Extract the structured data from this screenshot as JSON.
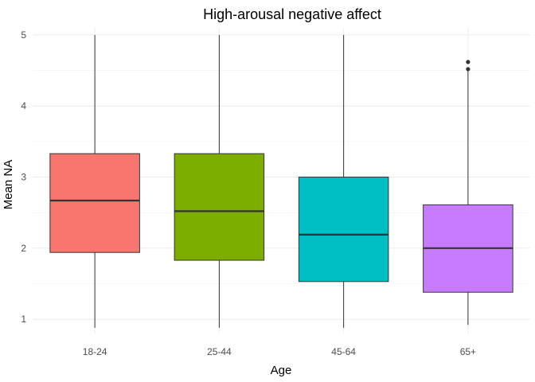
{
  "chart_data": {
    "type": "boxplot",
    "title": "High-arousal negative affect",
    "xlabel": "Age",
    "ylabel": "Mean NA",
    "categories": [
      "18-24",
      "25-44",
      "45-64",
      "65+"
    ],
    "colors": [
      "#F8766D",
      "#7CAE00",
      "#00BFC4",
      "#C77CFF"
    ],
    "boxes": [
      {
        "category": "18-24",
        "whisker_low": 0.88,
        "q1": 1.94,
        "median": 2.67,
        "q3": 3.33,
        "whisker_high": 5.0,
        "outliers": []
      },
      {
        "category": "25-44",
        "whisker_low": 0.88,
        "q1": 1.83,
        "median": 2.52,
        "q3": 3.33,
        "whisker_high": 5.0,
        "outliers": []
      },
      {
        "category": "45-64",
        "whisker_low": 0.88,
        "q1": 1.53,
        "median": 2.19,
        "q3": 3.0,
        "whisker_high": 5.0,
        "outliers": []
      },
      {
        "category": "65+",
        "whisker_low": 0.92,
        "q1": 1.38,
        "median": 2.0,
        "q3": 2.61,
        "whisker_high": 4.5,
        "outliers": [
          4.52,
          4.62
        ]
      }
    ],
    "yticks": [
      1,
      2,
      3,
      4,
      5
    ],
    "ylim": [
      0.8,
      5.1
    ],
    "grid": true,
    "legend": "none"
  }
}
